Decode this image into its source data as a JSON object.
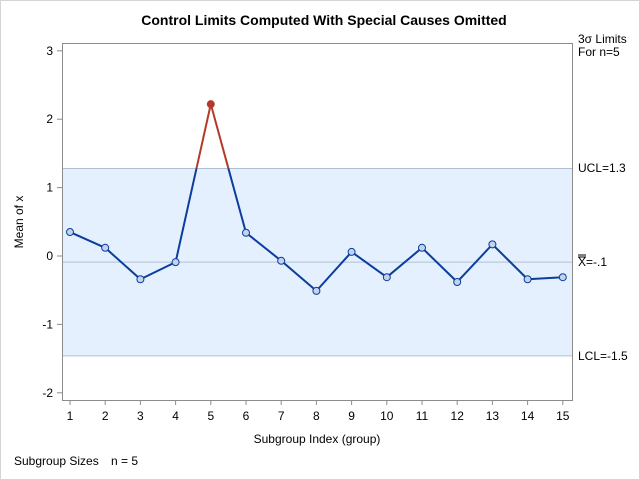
{
  "chart_data": {
    "type": "line",
    "title": "Control Limits Computed With Special Causes Omitted",
    "xlabel": "Subgroup Index (group)",
    "ylabel": "Mean of x",
    "x": [
      1,
      2,
      3,
      4,
      5,
      6,
      7,
      8,
      9,
      10,
      11,
      12,
      13,
      14,
      15
    ],
    "series": [
      {
        "name": "Mean of x",
        "values": [
          0.35,
          0.12,
          -0.34,
          -0.09,
          2.22,
          0.34,
          -0.07,
          -0.51,
          0.06,
          -0.31,
          0.12,
          -0.38,
          0.17,
          -0.34,
          -0.31
        ]
      }
    ],
    "special_cause_points": [
      5
    ],
    "ylim": [
      -2.1,
      3.1
    ],
    "yticks": [
      -2,
      -1,
      0,
      1,
      2,
      3
    ],
    "xticks": [
      1,
      2,
      3,
      4,
      5,
      6,
      7,
      8,
      9,
      10,
      11,
      12,
      13,
      14,
      15
    ],
    "ucl": 1.28,
    "center": -0.09,
    "lcl": -1.46,
    "grid": false,
    "limits_header": [
      "3σ Limits",
      "For n=5"
    ],
    "ucl_label": "UCL=1.3",
    "center_label": "=-.1",
    "center_symbol": "X",
    "lcl_label": "LCL=-1.5",
    "footnote": {
      "label": "Subgroup Sizes",
      "value": "n = 5"
    },
    "colors": {
      "line": "#0b3d9e",
      "special": "#b5392b",
      "marker_fill": "#c5d3ea",
      "band": "#e4f0fd",
      "limit_line": "#b0bfd3",
      "axis": "#8c8c8c"
    }
  }
}
